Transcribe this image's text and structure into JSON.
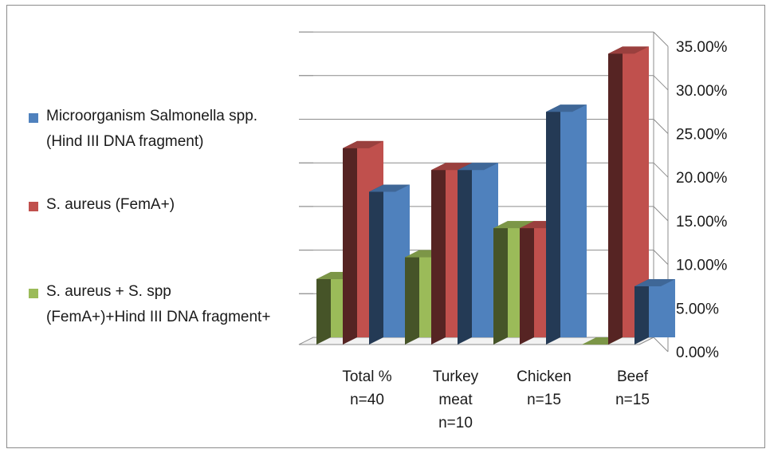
{
  "chart_data": {
    "type": "bar",
    "categories": [
      [
        "Total %",
        "n=40"
      ],
      [
        "Turkey",
        "meat",
        "n=10"
      ],
      [
        "Chicken",
        "n=15"
      ],
      [
        "Beef",
        "n=15"
      ]
    ],
    "series": [
      {
        "name": "S. aureus + S. spp (FemA+)+Hind III DNA fragment+",
        "color": "#9bbb59",
        "values": [
          7.5,
          10.0,
          13.33,
          0.0
        ]
      },
      {
        "name": "S. aureus (FemA+)",
        "color": "#c0504d",
        "values": [
          22.5,
          20.0,
          13.33,
          33.33
        ]
      },
      {
        "name": "Microorganism Salmonella spp. (Hind III DNA fragment)",
        "color": "#4f81bd",
        "values": [
          17.5,
          20.0,
          26.67,
          6.67
        ]
      }
    ],
    "yaxis": {
      "position": "right",
      "ylim": [
        0,
        35
      ],
      "ticks": [
        "0.00%",
        "5.00%",
        "10.00%",
        "15.00%",
        "20.00%",
        "25.00%",
        "30.00%",
        "35.00%"
      ]
    },
    "grid": true,
    "three_d": true,
    "legend_position": "left",
    "legend_order": [
      2,
      1,
      0
    ],
    "title": "",
    "xlabel": "",
    "ylabel": ""
  }
}
